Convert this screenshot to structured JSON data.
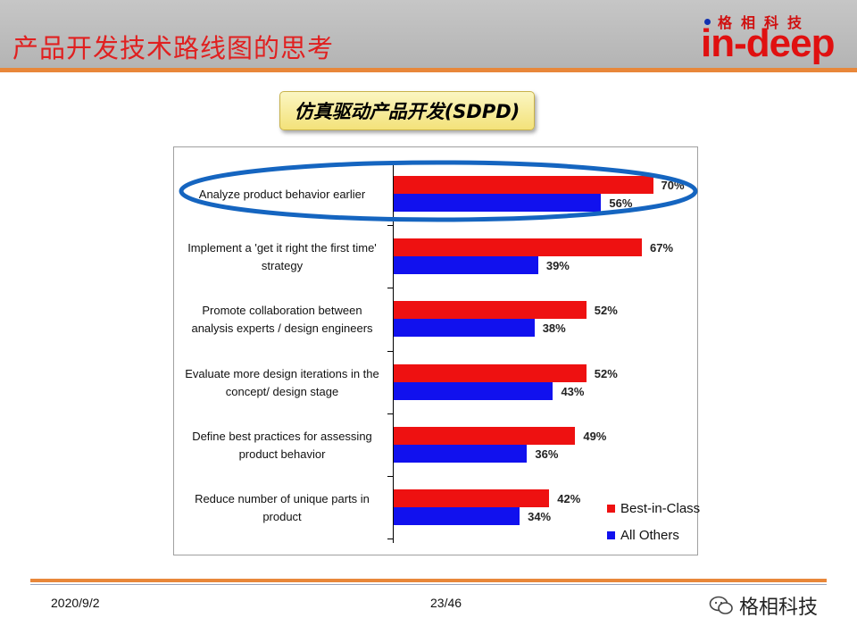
{
  "header": {
    "title": "产品开发技术路线图的思考",
    "logo_cn": "格相科技",
    "logo_en": "in-deep"
  },
  "badge": {
    "label": "仿真驱动产品开发(SDPD)"
  },
  "chart_data": {
    "type": "bar",
    "orientation": "horizontal",
    "categories": [
      "Analyze product behavior earlier",
      "Implement a 'get it right the first time' strategy",
      "Promote collaboration between analysis experts / design engineers",
      "Evaluate more design iterations in the concept/ design stage",
      "Define best practices for assessing product behavior",
      "Reduce number of unique parts in product"
    ],
    "category_lines": [
      [
        "Analyze product behavior earlier"
      ],
      [
        "Implement a 'get it right the first time'",
        "strategy"
      ],
      [
        "Promote collaboration between",
        "analysis experts / design engineers"
      ],
      [
        "Evaluate more design iterations in the",
        "concept/ design stage"
      ],
      [
        "Define best practices for assessing",
        "product behavior"
      ],
      [
        "Reduce number of unique parts in",
        "product"
      ]
    ],
    "series": [
      {
        "name": "Best-in-Class",
        "color": "#ee1111",
        "values": [
          70,
          67,
          52,
          52,
          49,
          42
        ],
        "labels": [
          "70%",
          "67%",
          "52%",
          "52%",
          "49%",
          "42%"
        ]
      },
      {
        "name": "All Others",
        "color": "#1111ee",
        "values": [
          56,
          39,
          38,
          43,
          36,
          34
        ],
        "labels": [
          "56%",
          "39%",
          "38%",
          "43%",
          "36%",
          "34%"
        ]
      }
    ],
    "xlim": [
      0,
      100
    ],
    "legend": "bottom-right",
    "highlight_category": "Analyze product behavior earlier"
  },
  "footer": {
    "date": "2020/9/2",
    "page": "23/46",
    "watermark": "格相科技"
  }
}
